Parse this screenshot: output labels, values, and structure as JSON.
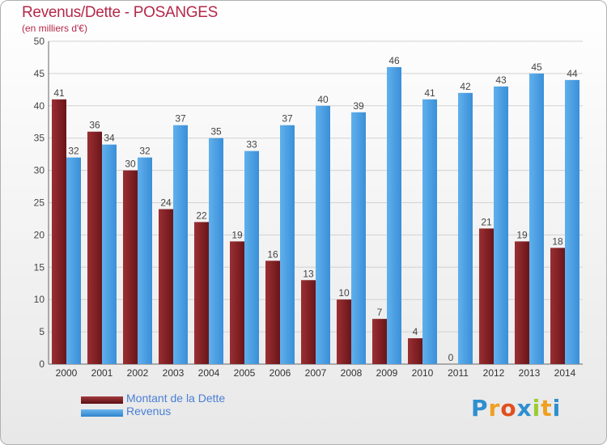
{
  "header": {
    "title": "Revenus/Dette - POSANGES",
    "subtitle": "(en milliers d'€)"
  },
  "legend": [
    {
      "label": "Montant de la Dette",
      "color": "#7a1e22"
    },
    {
      "label": "Revenus",
      "color": "#4a9de0"
    }
  ],
  "logo": {
    "text": "Proxiti",
    "letters": [
      {
        "ch": "P",
        "color": "#2e8fd0"
      },
      {
        "ch": "r",
        "color": "#f0a020"
      },
      {
        "ch": "o",
        "color": "#e05020"
      },
      {
        "ch": "x",
        "color": "#2e8fd0"
      },
      {
        "ch": "i",
        "color": "#9ccc30"
      },
      {
        "ch": "t",
        "color": "#f0a020"
      },
      {
        "ch": "i",
        "color": "#2e8fd0"
      }
    ]
  },
  "chart_data": {
    "type": "bar",
    "categories": [
      "2000",
      "2001",
      "2002",
      "2003",
      "2004",
      "2005",
      "2006",
      "2007",
      "2008",
      "2009",
      "2010",
      "2011",
      "2012",
      "2013",
      "2014"
    ],
    "series": [
      {
        "name": "Montant de la Dette",
        "color": "#7a1e22",
        "values": [
          41,
          36,
          30,
          24,
          22,
          19,
          16,
          13,
          10,
          7,
          4,
          0,
          21,
          19,
          18
        ]
      },
      {
        "name": "Revenus",
        "color": "#4a9de0",
        "values": [
          32,
          34,
          32,
          37,
          35,
          33,
          37,
          40,
          39,
          46,
          41,
          42,
          43,
          45,
          44
        ]
      }
    ],
    "ylim": [
      0,
      50
    ],
    "yticks": [
      "0",
      "5",
      "10",
      "15",
      "20",
      "25",
      "30",
      "35",
      "40",
      "45",
      "50"
    ],
    "grid": true
  }
}
